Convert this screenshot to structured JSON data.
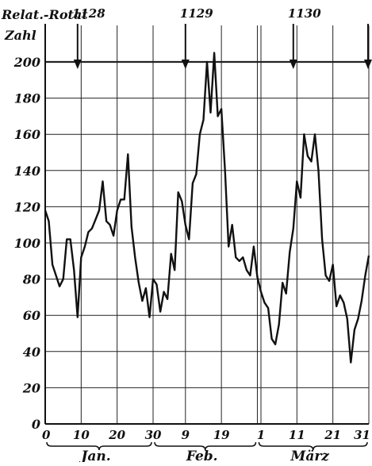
{
  "chart_data": {
    "type": "line",
    "title": "",
    "ylabel_line1": "Relat.-Rotat",
    "ylabel_line2": "Zahl",
    "ylim": [
      0,
      220
    ],
    "yticks": [
      0,
      20,
      40,
      60,
      80,
      100,
      120,
      140,
      160,
      180,
      200
    ],
    "ytick_labels": [
      "0",
      "20",
      "40",
      "60",
      "80",
      "100",
      "120",
      "140",
      "160",
      "180",
      "200"
    ],
    "xlim": [
      0,
      90
    ],
    "xticks": [
      0,
      10,
      20,
      30,
      39,
      49,
      59,
      60,
      70,
      80,
      90
    ],
    "xtick_labels": [
      "0",
      "10",
      "20",
      "30",
      "9",
      "19",
      "",
      "1",
      "11",
      "21",
      "31"
    ],
    "months": [
      {
        "label": "Jan.",
        "start": 0,
        "end": 30
      },
      {
        "label": "Feb.",
        "start": 30,
        "end": 59
      },
      {
        "label": "März",
        "start": 59,
        "end": 90
      }
    ],
    "rotations": [
      {
        "label": "1128",
        "x": 9
      },
      {
        "label": "1129",
        "x": 39
      },
      {
        "label": "1130",
        "x": 69
      },
      {
        "label": "",
        "x": 99
      }
    ],
    "grid": true,
    "series": [
      {
        "x": [
          0,
          1,
          2,
          3,
          4,
          5,
          6,
          7,
          8,
          9,
          10,
          11,
          12,
          13,
          14,
          15,
          16,
          17,
          18,
          19,
          20,
          21,
          22,
          23,
          24,
          25,
          26,
          27,
          28,
          29,
          30,
          31,
          32,
          33,
          34,
          35,
          36,
          37,
          38,
          39,
          40,
          41,
          42,
          43,
          44,
          45,
          46,
          47,
          48,
          49,
          50,
          51,
          52,
          53,
          54,
          55,
          56,
          57,
          58,
          59,
          60,
          61,
          62,
          63,
          64,
          65,
          66,
          67,
          68,
          69,
          70,
          71,
          72,
          73,
          74,
          75,
          76,
          77,
          78,
          79,
          80,
          81,
          82,
          83,
          84,
          85,
          86,
          87,
          88,
          89,
          90
        ],
        "y": [
          118,
          112,
          88,
          82,
          76,
          80,
          102,
          102,
          85,
          59,
          92,
          98,
          106,
          108,
          113,
          118,
          134,
          112,
          110,
          104,
          118,
          124,
          124,
          149,
          109,
          92,
          78,
          68,
          75,
          59,
          80,
          77,
          62,
          73,
          69,
          94,
          85,
          128,
          123,
          110,
          102,
          133,
          138,
          160,
          168,
          200,
          172,
          205,
          170,
          174,
          140,
          98,
          110,
          92,
          90,
          92,
          85,
          82,
          98,
          81,
          73,
          67,
          64,
          47,
          44,
          55,
          78,
          72,
          95,
          108,
          134,
          125,
          160,
          148,
          145,
          160,
          140,
          102,
          82,
          79,
          88,
          65,
          71,
          67,
          58,
          34,
          52,
          58,
          68,
          82,
          93
        ]
      }
    ]
  }
}
